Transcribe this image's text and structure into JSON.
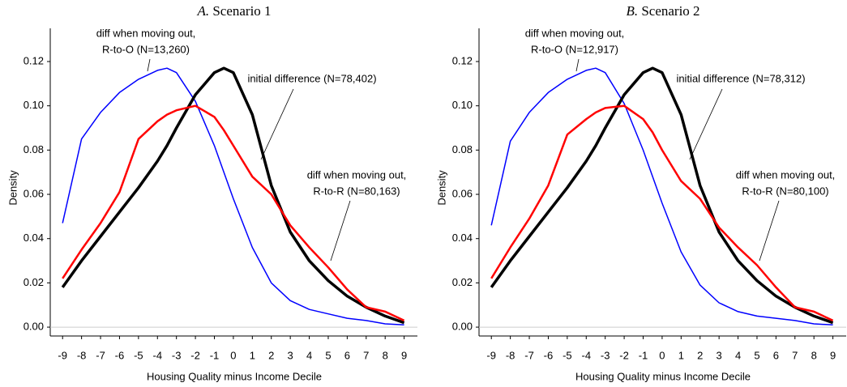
{
  "chart_data": [
    {
      "type": "line",
      "panel": "A.",
      "title": "Scenario 1",
      "x_label": "Housing Quality minus Income Decile",
      "y_label": "Density",
      "x": [
        -9,
        -8,
        -7,
        -6,
        -5,
        -4,
        -3.5,
        -3,
        -2,
        -1,
        -0.5,
        0,
        1,
        2,
        3,
        4,
        5,
        6,
        7,
        8,
        9
      ],
      "xlim": [
        -9.65,
        9.7
      ],
      "xticks": [
        -9,
        -8,
        -7,
        -6,
        -5,
        -4,
        -3,
        -2,
        -1,
        0,
        1,
        2,
        3,
        4,
        5,
        6,
        7,
        8,
        9
      ],
      "ylim": [
        -0.004,
        0.135
      ],
      "yticks": [
        {
          "value": 0,
          "label": "0.00"
        },
        {
          "value": 0.02,
          "label": "0.02"
        },
        {
          "value": 0.04,
          "label": "0.04"
        },
        {
          "value": 0.06,
          "label": "0.06"
        },
        {
          "value": 0.08,
          "label": "0.08"
        },
        {
          "value": 0.1,
          "label": "0.10"
        },
        {
          "value": 0.12,
          "label": "0.12"
        }
      ],
      "series": [
        {
          "color": "#0000ff",
          "values": [
            0.047,
            0.085,
            0.097,
            0.106,
            0.112,
            0.116,
            0.117,
            0.115,
            0.102,
            0.082,
            0.07,
            0.058,
            0.036,
            0.02,
            0.012,
            0.008,
            0.006,
            0.004,
            0.003,
            0.0015,
            0.001
          ]
        },
        {
          "color": "#000000",
          "values": [
            0.018,
            0.03,
            0.041,
            0.052,
            0.063,
            0.075,
            0.082,
            0.09,
            0.105,
            0.115,
            0.117,
            0.115,
            0.096,
            0.064,
            0.043,
            0.03,
            0.021,
            0.014,
            0.009,
            0.005,
            0.002
          ]
        },
        {
          "color": "#ff0000",
          "values": [
            0.022,
            0.035,
            0.047,
            0.061,
            0.085,
            0.093,
            0.096,
            0.098,
            0.1,
            0.095,
            0.089,
            0.082,
            0.068,
            0.06,
            0.046,
            0.036,
            0.027,
            0.017,
            0.009,
            0.007,
            0.003
          ]
        }
      ],
      "annotations": [
        [
          "diff when moving out,",
          "R-to-O (N=13,260)"
        ],
        [
          "initial difference (N=78,402)"
        ],
        [
          "diff when moving out,",
          "R-to-R (N=80,163)"
        ]
      ]
    },
    {
      "type": "line",
      "panel": "B.",
      "title": "Scenario 2",
      "x_label": "Housing Quality minus Income Decile",
      "y_label": "Density",
      "x": [
        -9,
        -8,
        -7,
        -6,
        -5,
        -4,
        -3.5,
        -3,
        -2,
        -1,
        -0.5,
        0,
        1,
        2,
        3,
        4,
        5,
        6,
        7,
        8,
        9
      ],
      "xlim": [
        -9.65,
        9.7
      ],
      "xticks": [
        -9,
        -8,
        -7,
        -6,
        -5,
        -4,
        -3,
        -2,
        -1,
        0,
        1,
        2,
        3,
        4,
        5,
        6,
        7,
        8,
        9
      ],
      "ylim": [
        -0.004,
        0.135
      ],
      "yticks": [
        {
          "value": 0,
          "label": "0.00"
        },
        {
          "value": 0.02,
          "label": "0.02"
        },
        {
          "value": 0.04,
          "label": "0.04"
        },
        {
          "value": 0.06,
          "label": "0.06"
        },
        {
          "value": 0.08,
          "label": "0.08"
        },
        {
          "value": 0.1,
          "label": "0.10"
        },
        {
          "value": 0.12,
          "label": "0.12"
        }
      ],
      "series": [
        {
          "color": "#0000ff",
          "values": [
            0.046,
            0.084,
            0.097,
            0.106,
            0.112,
            0.116,
            0.117,
            0.115,
            0.101,
            0.08,
            0.068,
            0.056,
            0.034,
            0.019,
            0.011,
            0.007,
            0.005,
            0.004,
            0.003,
            0.0015,
            0.001
          ]
        },
        {
          "color": "#000000",
          "values": [
            0.018,
            0.03,
            0.041,
            0.052,
            0.063,
            0.075,
            0.082,
            0.09,
            0.105,
            0.115,
            0.117,
            0.115,
            0.096,
            0.064,
            0.043,
            0.03,
            0.021,
            0.014,
            0.009,
            0.005,
            0.002
          ]
        },
        {
          "color": "#ff0000",
          "values": [
            0.022,
            0.036,
            0.049,
            0.064,
            0.087,
            0.094,
            0.097,
            0.099,
            0.1,
            0.094,
            0.088,
            0.08,
            0.066,
            0.058,
            0.045,
            0.036,
            0.028,
            0.018,
            0.009,
            0.007,
            0.003
          ]
        }
      ],
      "annotations": [
        [
          "diff when moving out,",
          "R-to-O (N=12,917)"
        ],
        [
          "initial difference (N=78,312)"
        ],
        [
          "diff when moving out,",
          "R-to-R (N=80,100)"
        ]
      ]
    }
  ]
}
